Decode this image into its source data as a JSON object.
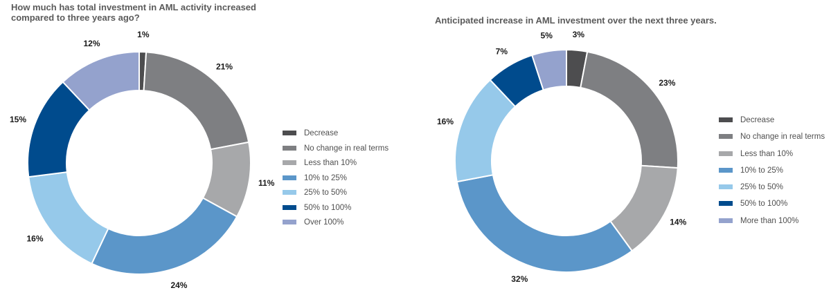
{
  "chart_data": [
    {
      "type": "pie",
      "title": "How much has total investment in AML activity increased compared to three years ago?",
      "categories": [
        "Decrease",
        "No change in real terms",
        "Less than 10%",
        "10%  to 25%",
        "25%  to 50%",
        "50% to 100%",
        "Over 100%"
      ],
      "values": [
        1,
        21,
        11,
        24,
        16,
        15,
        12
      ],
      "data_labels": [
        "1%",
        "21%",
        "11%",
        "24%",
        "16%",
        "15%",
        "12%"
      ],
      "colors": [
        "#4d4d4f",
        "#7e7f82",
        "#a7a8aa",
        "#5b96c9",
        "#96c9ea",
        "#004b8d",
        "#94a2cd"
      ],
      "donut": true,
      "legend": "right"
    },
    {
      "type": "pie",
      "title": "Anticipated increase in AML investment over the next three years.",
      "categories": [
        "Decrease",
        "No change in real terms",
        "Less than 10%",
        "10% to 25%",
        "25% to 50%",
        "50% to 100%",
        "More than 100%"
      ],
      "values": [
        3,
        23,
        14,
        32,
        16,
        7,
        5
      ],
      "data_labels": [
        "3%",
        "23%",
        "14%",
        "32%",
        "16%",
        "7%",
        "5%"
      ],
      "colors": [
        "#4d4d4f",
        "#7e7f82",
        "#a7a8aa",
        "#5b96c9",
        "#96c9ea",
        "#004b8d",
        "#94a2cd"
      ],
      "donut": true,
      "legend": "right"
    }
  ]
}
